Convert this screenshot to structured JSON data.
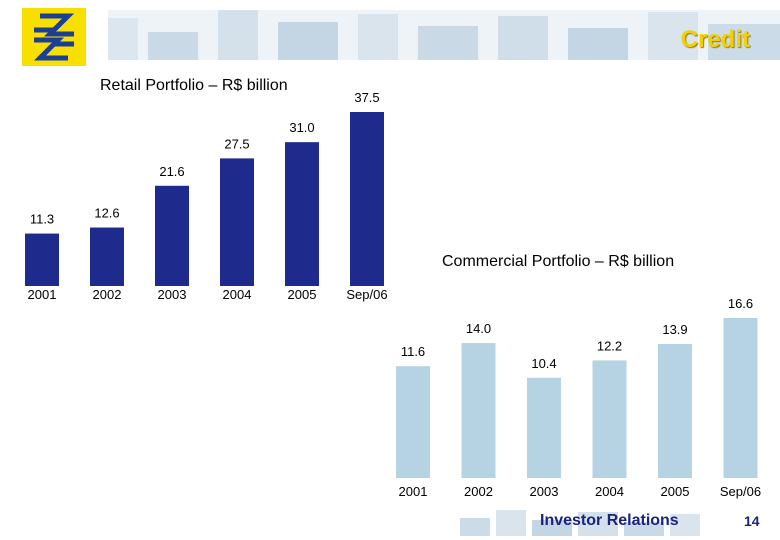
{
  "header": {
    "title": "Credit"
  },
  "footer": {
    "section": "Investor Relations",
    "page": "14"
  },
  "colors": {
    "retail_bar": "#1f2b8c",
    "commercial_bar": "#b5d3e3",
    "logo_yellow": "#f7e000",
    "logo_blue": "#1c3f94",
    "header_band": "#dbe6ef"
  },
  "chart_data": [
    {
      "type": "bar",
      "title": "Retail Portfolio – R$ billion",
      "categories": [
        "2001",
        "2002",
        "2003",
        "2004",
        "2005",
        "Sep/06"
      ],
      "values": [
        11.3,
        12.6,
        21.6,
        27.5,
        31.0,
        37.5
      ],
      "value_labels": [
        "11.3",
        "12.6",
        "21.6",
        "27.5",
        "31.0",
        "37.5"
      ],
      "xlabel": "",
      "ylabel": "",
      "ylim": [
        0,
        37.5
      ],
      "grid": false,
      "legend": "none"
    },
    {
      "type": "bar",
      "title": "Commercial Portfolio – R$ billion",
      "categories": [
        "2001",
        "2002",
        "2003",
        "2004",
        "2005",
        "Sep/06"
      ],
      "values": [
        11.6,
        14.0,
        10.4,
        12.2,
        13.9,
        16.6
      ],
      "value_labels": [
        "11.6",
        "14.0",
        "10.4",
        "12.2",
        "13.9",
        "16.6"
      ],
      "xlabel": "",
      "ylabel": "",
      "ylim": [
        0,
        16.6
      ],
      "grid": false,
      "legend": "none"
    }
  ]
}
